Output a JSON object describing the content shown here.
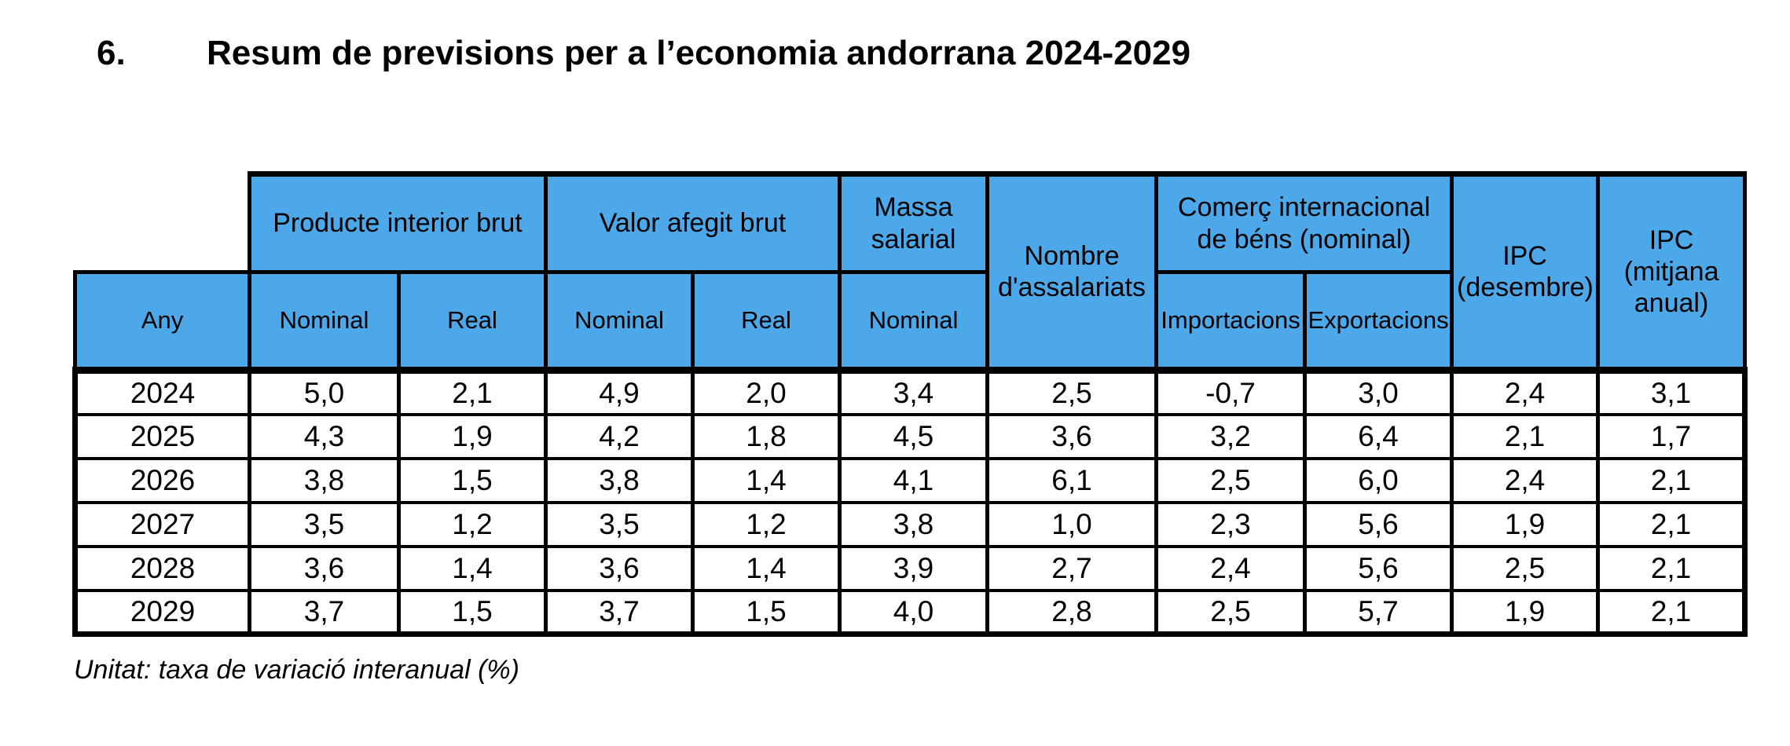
{
  "heading": {
    "number": "6.",
    "title": "Resum de previsions per a l’economia andorrana 2024-2029"
  },
  "table": {
    "header_fill_color": "#4CA8E8",
    "border_color": "#000000",
    "group_headers": {
      "pib": "Producte interior brut",
      "vab": "Valor afegit brut",
      "massa": "Massa salarial",
      "assalariats": "Nombre d'assalariats",
      "comerc": "Comerç internacional de béns (nominal)",
      "ipc_desembre": "IPC (desembre)",
      "ipc_mitjana": "IPC (mitjana anual)"
    },
    "sub_headers": {
      "any": "Any",
      "pib_nominal": "Nominal",
      "pib_real": "Real",
      "vab_nominal": "Nominal",
      "vab_real": "Real",
      "massa_nominal": "Nominal",
      "importacions": "Importacions",
      "exportacions": "Exportacions"
    },
    "rows": [
      {
        "any": "2024",
        "values": [
          "5,0",
          "2,1",
          "4,9",
          "2,0",
          "3,4",
          "2,5",
          "-0,7",
          "3,0",
          "2,4",
          "3,1"
        ]
      },
      {
        "any": "2025",
        "values": [
          "4,3",
          "1,9",
          "4,2",
          "1,8",
          "4,5",
          "3,6",
          "3,2",
          "6,4",
          "2,1",
          "1,7"
        ]
      },
      {
        "any": "2026",
        "values": [
          "3,8",
          "1,5",
          "3,8",
          "1,4",
          "4,1",
          "6,1",
          "2,5",
          "6,0",
          "2,4",
          "2,1"
        ]
      },
      {
        "any": "2027",
        "values": [
          "3,5",
          "1,2",
          "3,5",
          "1,2",
          "3,8",
          "1,0",
          "2,3",
          "5,6",
          "1,9",
          "2,1"
        ]
      },
      {
        "any": "2028",
        "values": [
          "3,6",
          "1,4",
          "3,6",
          "1,4",
          "3,9",
          "2,7",
          "2,4",
          "5,6",
          "2,5",
          "2,1"
        ]
      },
      {
        "any": "2029",
        "values": [
          "3,7",
          "1,5",
          "3,7",
          "1,5",
          "4,0",
          "2,8",
          "2,5",
          "5,7",
          "1,9",
          "2,1"
        ]
      }
    ],
    "unit_note": "Unitat: taxa de variació interanual (%)"
  }
}
